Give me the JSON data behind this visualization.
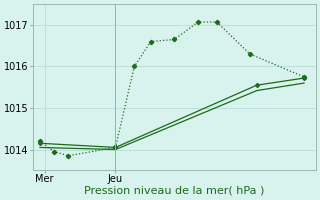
{
  "xlabel": "Pression niveau de la mer( hPa )",
  "bg_color": "#d8f2ee",
  "grid_color": "#b8ddd8",
  "line_color": "#1a6b1a",
  "vline_color": "#c0a0a0",
  "ylim": [
    1013.5,
    1017.5
  ],
  "xlim": [
    0,
    12
  ],
  "yticks": [
    1014,
    1015,
    1016,
    1017
  ],
  "xtick_positions": [
    0.5,
    3.5
  ],
  "xtick_labels": [
    "Mer",
    "Jeu"
  ],
  "series1_x": [
    0.3,
    0.9,
    1.5,
    3.5,
    4.3,
    5.0,
    6.0,
    7.0,
    7.8,
    9.2,
    11.5
  ],
  "series1_y": [
    1014.2,
    1013.95,
    1013.85,
    1014.05,
    1016.0,
    1016.6,
    1016.65,
    1017.07,
    1017.07,
    1016.3,
    1015.75
  ],
  "series2_x": [
    0.3,
    3.5,
    9.5,
    11.5
  ],
  "series2_y": [
    1014.15,
    1014.05,
    1015.55,
    1015.72
  ],
  "series3_x": [
    0.3,
    3.5,
    9.5,
    11.5
  ],
  "series3_y": [
    1014.05,
    1014.0,
    1015.42,
    1015.6
  ],
  "vline_x": 3.5,
  "fontsize_xlabel": 8,
  "fontsize_ytick": 7,
  "fontsize_xtick": 7
}
